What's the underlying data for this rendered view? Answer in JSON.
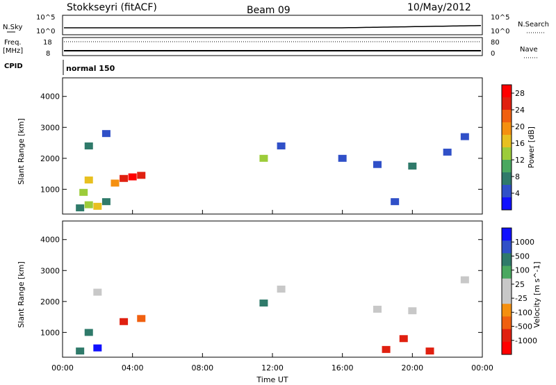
{
  "header": {
    "title": "Stokkseyri (fitACF)",
    "beam": "Beam 09",
    "date": "10/May/2012"
  },
  "top_panels": {
    "nsky_label": "N.Sky",
    "nsky_ticks": [
      "10^5",
      "10^0"
    ],
    "nsearch_label": "N.Search",
    "nsearch_ticks": [
      "10^5",
      "10^0"
    ],
    "freq_label_1": "Freq.",
    "freq_label_2": "[MHz]",
    "freq_ticks": [
      "18",
      "8"
    ],
    "nave_label": "Nave",
    "nave_ticks": [
      "80",
      "0"
    ],
    "cpid_label": "CPID",
    "cpid_value": "normal 150"
  },
  "colors": {
    "power_scale": [
      "#1010ff",
      "#3050c8",
      "#2f7a6a",
      "#4aa860",
      "#9ccc3a",
      "#e8c020",
      "#f59010",
      "#f06010",
      "#e02010",
      "#ff0000"
    ],
    "velocity_scale": [
      "#1010ff",
      "#3050c8",
      "#2f7a6a",
      "#4aa860",
      "#c8c8c8",
      "#c8c8c8",
      "#f59010",
      "#f06010",
      "#e02010",
      "#ff0000"
    ]
  },
  "chart_data": [
    {
      "type": "heatmap",
      "name": "power",
      "ylabel": "Slant Range [km]",
      "y_ticks": [
        "1000",
        "2000",
        "3000",
        "4000"
      ],
      "ylim": [
        200,
        4600
      ],
      "x_ticks": [
        "00:00",
        "04:00",
        "08:00",
        "12:00",
        "16:00",
        "20:00",
        "00:00"
      ],
      "xlim_hours": [
        0,
        24
      ],
      "colorbar_label": "Power [dB]",
      "colorbar_ticks": [
        "4",
        "8",
        "12",
        "16",
        "20",
        "24",
        "28"
      ],
      "colorbar_range": [
        0,
        30
      ],
      "cells": [
        {
          "t": 1.0,
          "r": 400,
          "v": 8
        },
        {
          "t": 1.5,
          "r": 500,
          "v": 12
        },
        {
          "t": 2.0,
          "r": 450,
          "v": 16
        },
        {
          "t": 2.5,
          "r": 600,
          "v": 8
        },
        {
          "t": 1.2,
          "r": 900,
          "v": 12
        },
        {
          "t": 1.5,
          "r": 1300,
          "v": 16
        },
        {
          "t": 3.0,
          "r": 1200,
          "v": 20
        },
        {
          "t": 3.5,
          "r": 1350,
          "v": 24
        },
        {
          "t": 4.0,
          "r": 1400,
          "v": 28
        },
        {
          "t": 4.5,
          "r": 1450,
          "v": 24
        },
        {
          "t": 1.5,
          "r": 2400,
          "v": 8
        },
        {
          "t": 2.5,
          "r": 2800,
          "v": 4
        },
        {
          "t": 11.5,
          "r": 2000,
          "v": 12
        },
        {
          "t": 12.5,
          "r": 2400,
          "v": 4
        },
        {
          "t": 16.0,
          "r": 2000,
          "v": 4
        },
        {
          "t": 18.0,
          "r": 1800,
          "v": 4
        },
        {
          "t": 20.0,
          "r": 1750,
          "v": 8
        },
        {
          "t": 22.0,
          "r": 2200,
          "v": 4
        },
        {
          "t": 19.0,
          "r": 600,
          "v": 4
        },
        {
          "t": 23.0,
          "r": 2700,
          "v": 4
        }
      ]
    },
    {
      "type": "heatmap",
      "name": "velocity",
      "ylabel": "Slant Range [km]",
      "y_ticks": [
        "1000",
        "2000",
        "3000",
        "4000"
      ],
      "ylim": [
        200,
        4600
      ],
      "x_ticks": [
        "00:00",
        "04:00",
        "08:00",
        "12:00",
        "16:00",
        "20:00",
        "00:00"
      ],
      "xlabel": "Time UT",
      "xlim_hours": [
        0,
        24
      ],
      "colorbar_label": "Velocity [m s^-1]",
      "colorbar_ticks": [
        "1000",
        "500",
        "100",
        "25",
        "-25",
        "-100",
        "-500",
        "-1000"
      ],
      "cells": [
        {
          "t": 1.0,
          "r": 400,
          "v": 100
        },
        {
          "t": 2.0,
          "r": 500,
          "v": 500
        },
        {
          "t": 1.5,
          "r": 1000,
          "v": 100
        },
        {
          "t": 3.5,
          "r": 1350,
          "v": -500
        },
        {
          "t": 4.5,
          "r": 1450,
          "v": -100
        },
        {
          "t": 2.0,
          "r": 2300,
          "v": 0
        },
        {
          "t": 11.5,
          "r": 1950,
          "v": 100
        },
        {
          "t": 12.5,
          "r": 2400,
          "v": 0
        },
        {
          "t": 18.0,
          "r": 1750,
          "v": 0
        },
        {
          "t": 20.0,
          "r": 1700,
          "v": 0
        },
        {
          "t": 19.5,
          "r": 800,
          "v": -500
        },
        {
          "t": 18.5,
          "r": 450,
          "v": -500
        },
        {
          "t": 21.0,
          "r": 400,
          "v": -500
        },
        {
          "t": 23.0,
          "r": 2700,
          "v": 0
        }
      ]
    }
  ]
}
